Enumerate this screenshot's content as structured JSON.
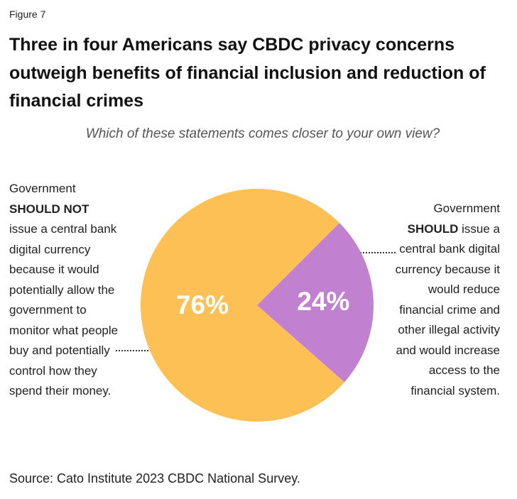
{
  "figure_label": "Figure 7",
  "chart_data": {
    "type": "pie",
    "title": "Three in four Americans say CBDC privacy concerns outweigh benefits of financial inclusion and reduction of financial crimes",
    "subtitle": "Which of these statements comes closer to your own view?",
    "annotations": [
      [
        "Government",
        "SHOULD NOT",
        "issue a central bank digital currency because it would potentially allow the government to monitor what people buy and potentially control how they spend their money."
      ],
      [
        "Government",
        "SHOULD",
        "issue a central bank digital currency because it would reduce financial crime and other illegal activity and would increase access to the financial system."
      ]
    ],
    "values": [
      76,
      24
    ],
    "value_labels": [
      "76%",
      "24%"
    ],
    "colors": [
      "#fcc055",
      "#c180d0"
    ],
    "source": "Source: Cato Institute 2023 CBDC National Survey."
  }
}
